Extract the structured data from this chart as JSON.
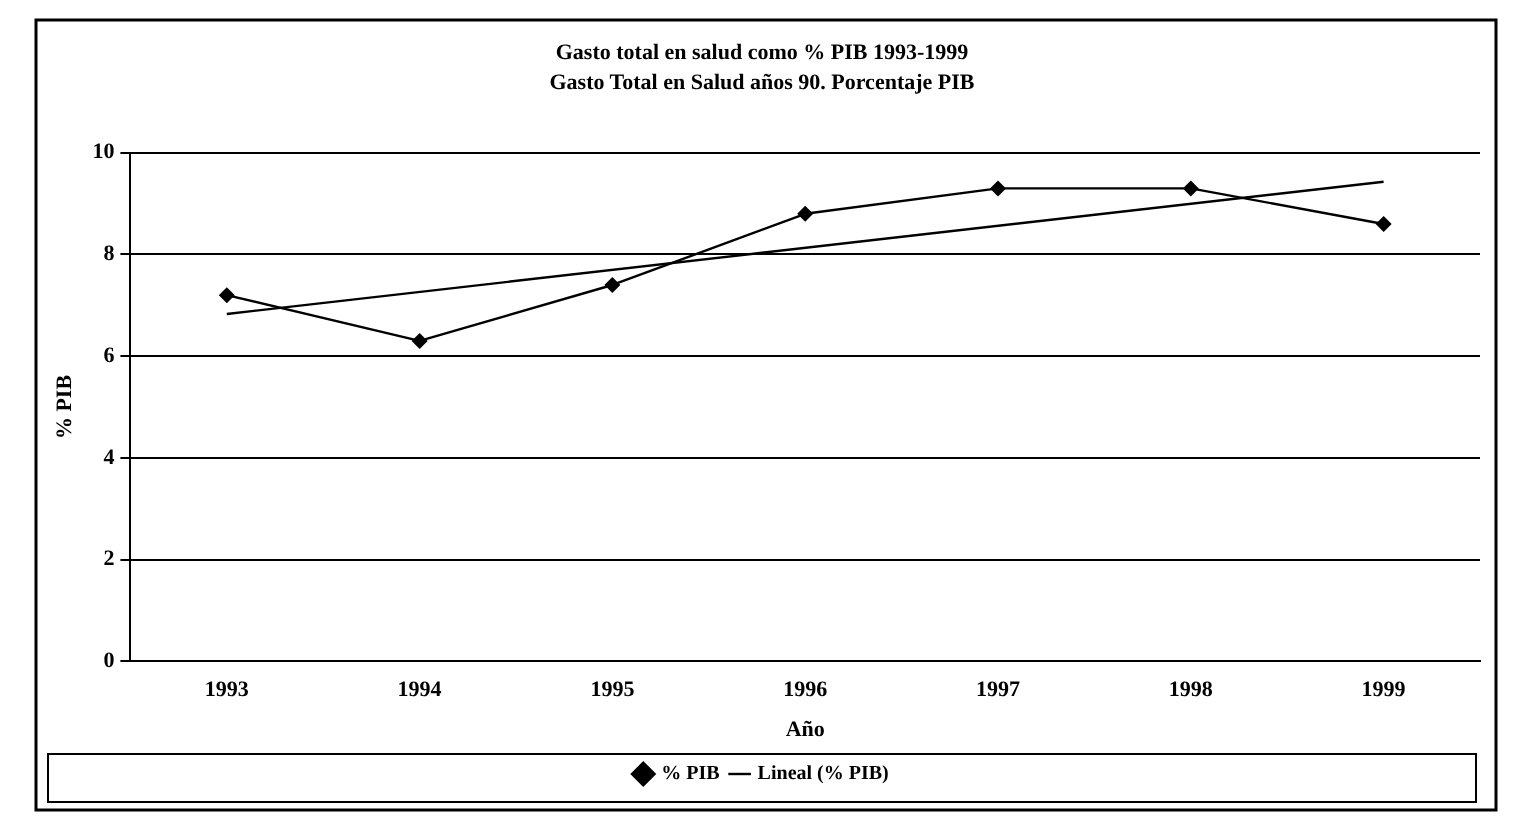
{
  "chart_data": {
    "type": "line",
    "title": "Gasto total en salud como % PIB 1993-1999",
    "subtitle": "Gasto Total en Salud años 90. Porcentaje PIB",
    "xlabel": "Año",
    "ylabel": "% PIB",
    "categories": [
      "1993",
      "1994",
      "1995",
      "1996",
      "1997",
      "1998",
      "1999"
    ],
    "series": [
      {
        "name": "% PIB",
        "color": "#000000",
        "values": [
          7.2,
          6.3,
          7.4,
          8.8,
          9.3,
          9.3,
          8.6
        ],
        "marker": "diamond"
      },
      {
        "name": "Lineal (% PIB)",
        "color": "#000000",
        "values": [
          6.83,
          null,
          null,
          null,
          null,
          null,
          9.43
        ],
        "marker": "none"
      }
    ],
    "ylim": [
      0,
      10
    ],
    "yticks": [
      0,
      2,
      4,
      6,
      8,
      10
    ],
    "grid": "y",
    "legend": "bottom",
    "line_style": "solid"
  }
}
